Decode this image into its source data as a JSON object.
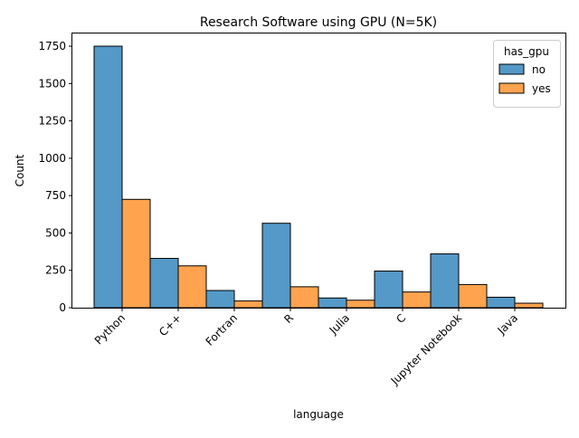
{
  "chart_data": {
    "type": "bar",
    "title": "Research Software using GPU (N=5K)",
    "xlabel": "language",
    "ylabel": "Count",
    "categories": [
      "Python",
      "C++",
      "Fortran",
      "R",
      "Julia",
      "C",
      "Jupyter Notebook",
      "Java"
    ],
    "series": [
      {
        "name": "no",
        "color": "#5499c7",
        "values": [
          1750,
          330,
          115,
          565,
          65,
          245,
          360,
          70
        ]
      },
      {
        "name": "yes",
        "color": "#ffa34f",
        "values": [
          725,
          280,
          45,
          140,
          50,
          105,
          155,
          30
        ]
      }
    ],
    "yticks": [
      "0",
      "250",
      "500",
      "750",
      "1000",
      "1250",
      "1500",
      "1750"
    ],
    "ylim": [
      0,
      1835
    ],
    "grid": false,
    "legend": {
      "title": "has_gpu",
      "placement": "top-right"
    }
  }
}
